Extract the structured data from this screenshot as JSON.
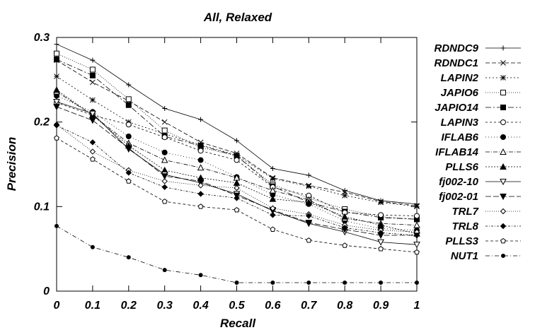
{
  "chart_data": {
    "type": "line",
    "title": "All, Relaxed",
    "xlabel": "Recall",
    "ylabel": "Precision",
    "xlim": [
      0,
      1
    ],
    "ylim": [
      0,
      0.3
    ],
    "x": [
      0,
      0.1,
      0.2,
      0.3,
      0.4,
      0.5,
      0.6,
      0.7,
      0.8,
      0.9,
      1
    ],
    "x_tick_labels": [
      "0",
      "0.1",
      "0.2",
      "0.3",
      "0.4",
      "0.5",
      "0.6",
      "0.7",
      "0.8",
      "0.9",
      "1"
    ],
    "y_ticks": [
      0,
      0.1,
      0.2,
      0.3
    ],
    "y_tick_labels": [
      "0",
      "0.1",
      "0.2",
      "0.3"
    ],
    "grid": false,
    "legend_position": "right",
    "series": [
      {
        "name": "RDNDC9",
        "marker": "plus",
        "dash": "",
        "values": [
          0.292,
          0.273,
          0.244,
          0.216,
          0.203,
          0.178,
          0.145,
          0.137,
          0.119,
          0.107,
          0.103
        ]
      },
      {
        "name": "RDNDC1",
        "marker": "x",
        "dash": "6,3",
        "values": [
          0.273,
          0.247,
          0.225,
          0.2,
          0.176,
          0.163,
          0.134,
          0.125,
          0.117,
          0.106,
          0.101
        ]
      },
      {
        "name": "LAPIN2",
        "marker": "star",
        "dash": "2,3",
        "values": [
          0.254,
          0.226,
          0.2,
          0.186,
          0.173,
          0.161,
          0.133,
          0.124,
          0.113,
          0.105,
          0.1
        ]
      },
      {
        "name": "JAPIO6",
        "marker": "square-open",
        "dash": "1,2",
        "values": [
          0.281,
          0.262,
          0.227,
          0.19,
          0.17,
          0.16,
          0.126,
          0.11,
          0.097,
          0.088,
          0.085
        ]
      },
      {
        "name": "JAPIO14",
        "marker": "square-filled",
        "dash": "8,3,2,3",
        "values": [
          0.274,
          0.255,
          0.22,
          0.183,
          0.172,
          0.16,
          0.124,
          0.105,
          0.094,
          0.087,
          0.085
        ]
      },
      {
        "name": "LAPIN3",
        "marker": "circle-open",
        "dash": "3,3",
        "values": [
          0.223,
          0.208,
          0.197,
          0.182,
          0.166,
          0.155,
          0.123,
          0.113,
          0.093,
          0.09,
          0.089
        ]
      },
      {
        "name": "IFLAB6",
        "marker": "circle-filled",
        "dash": "1,3",
        "values": [
          0.231,
          0.212,
          0.183,
          0.164,
          0.155,
          0.135,
          0.114,
          0.103,
          0.083,
          0.074,
          0.072
        ]
      },
      {
        "name": "IFLAB14",
        "marker": "triangle-open",
        "dash": "6,2,1,2",
        "values": [
          0.236,
          0.208,
          0.175,
          0.155,
          0.146,
          0.134,
          0.119,
          0.108,
          0.086,
          0.08,
          0.078
        ]
      },
      {
        "name": "PLLS6",
        "marker": "triangle-filled",
        "dash": "2,2",
        "values": [
          0.238,
          0.208,
          0.172,
          0.143,
          0.134,
          0.128,
          0.109,
          0.105,
          0.088,
          0.078,
          0.068
        ]
      },
      {
        "name": "fj002-10",
        "marker": "triangle-down-open",
        "dash": "",
        "values": [
          0.224,
          0.21,
          0.168,
          0.138,
          0.128,
          0.115,
          0.095,
          0.08,
          0.07,
          0.058,
          0.055
        ]
      },
      {
        "name": "fj002-01",
        "marker": "triangle-down-filled",
        "dash": "8,3",
        "values": [
          0.218,
          0.202,
          0.169,
          0.136,
          0.13,
          0.113,
          0.096,
          0.081,
          0.073,
          0.066,
          0.066
        ]
      },
      {
        "name": "TRL7",
        "marker": "diamond-open",
        "dash": "1,2",
        "values": [
          0.197,
          0.165,
          0.143,
          0.13,
          0.125,
          0.122,
          0.098,
          0.091,
          0.078,
          0.072,
          0.07
        ]
      },
      {
        "name": "TRL8",
        "marker": "diamond-filled",
        "dash": "3,2,1,2",
        "values": [
          0.196,
          0.176,
          0.14,
          0.123,
          0.115,
          0.11,
          0.09,
          0.089,
          0.075,
          0.069,
          0.066
        ]
      },
      {
        "name": "PLLS3",
        "marker": "pentagon-open",
        "dash": "4,3",
        "values": [
          0.181,
          0.156,
          0.13,
          0.106,
          0.1,
          0.096,
          0.073,
          0.06,
          0.054,
          0.05,
          0.046
        ]
      },
      {
        "name": "NUT1",
        "marker": "dot-filled",
        "dash": "6,3,1,3",
        "values": [
          0.077,
          0.052,
          0.04,
          0.025,
          0.019,
          0.01,
          0.01,
          0.01,
          0.01,
          0.01,
          0.01
        ]
      }
    ]
  }
}
